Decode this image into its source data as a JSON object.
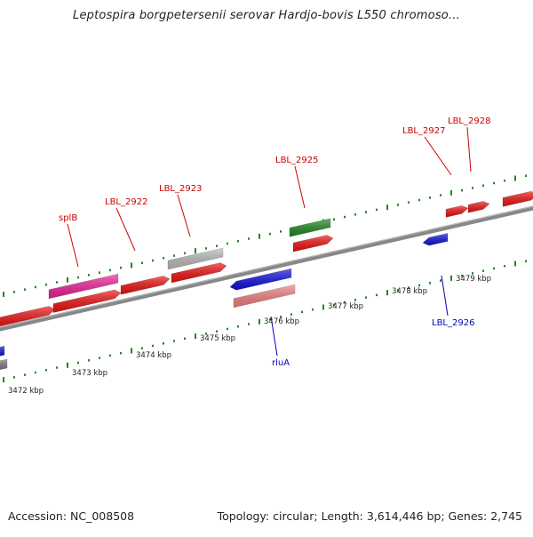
{
  "title": "Leptospira borgpetersenii serovar Hardjo-bovis L550 chromoso...",
  "footer": {
    "accession": "Accession: NC_008508",
    "info": "Topology: circular; Length: 3,614,446 bp; Genes: 2,745"
  },
  "colors": {
    "red": "#ee1111",
    "pink": "#ee2299",
    "salmon": "#f08080",
    "green": "#228822",
    "blue": "#1111dd",
    "gray": "#bbbbbb",
    "backbone": "#888888",
    "tick": "#228822",
    "upper_label": "#cc0000",
    "lower_label": "#0000bb"
  },
  "scale_labels": [
    "3472 kbp",
    "3473 kbp",
    "3474 kbp",
    "3475 kbp",
    "3476 kbp",
    "3477 kbp",
    "3478 kbp",
    "3479 kbp"
  ],
  "gene_labels_upper": [
    "splB",
    "LBL_2922",
    "LBL_2923",
    "LBL_2925",
    "LBL_2927",
    "LBL_2928"
  ],
  "gene_labels_lower": [
    "rluA",
    "LBL_2926"
  ]
}
